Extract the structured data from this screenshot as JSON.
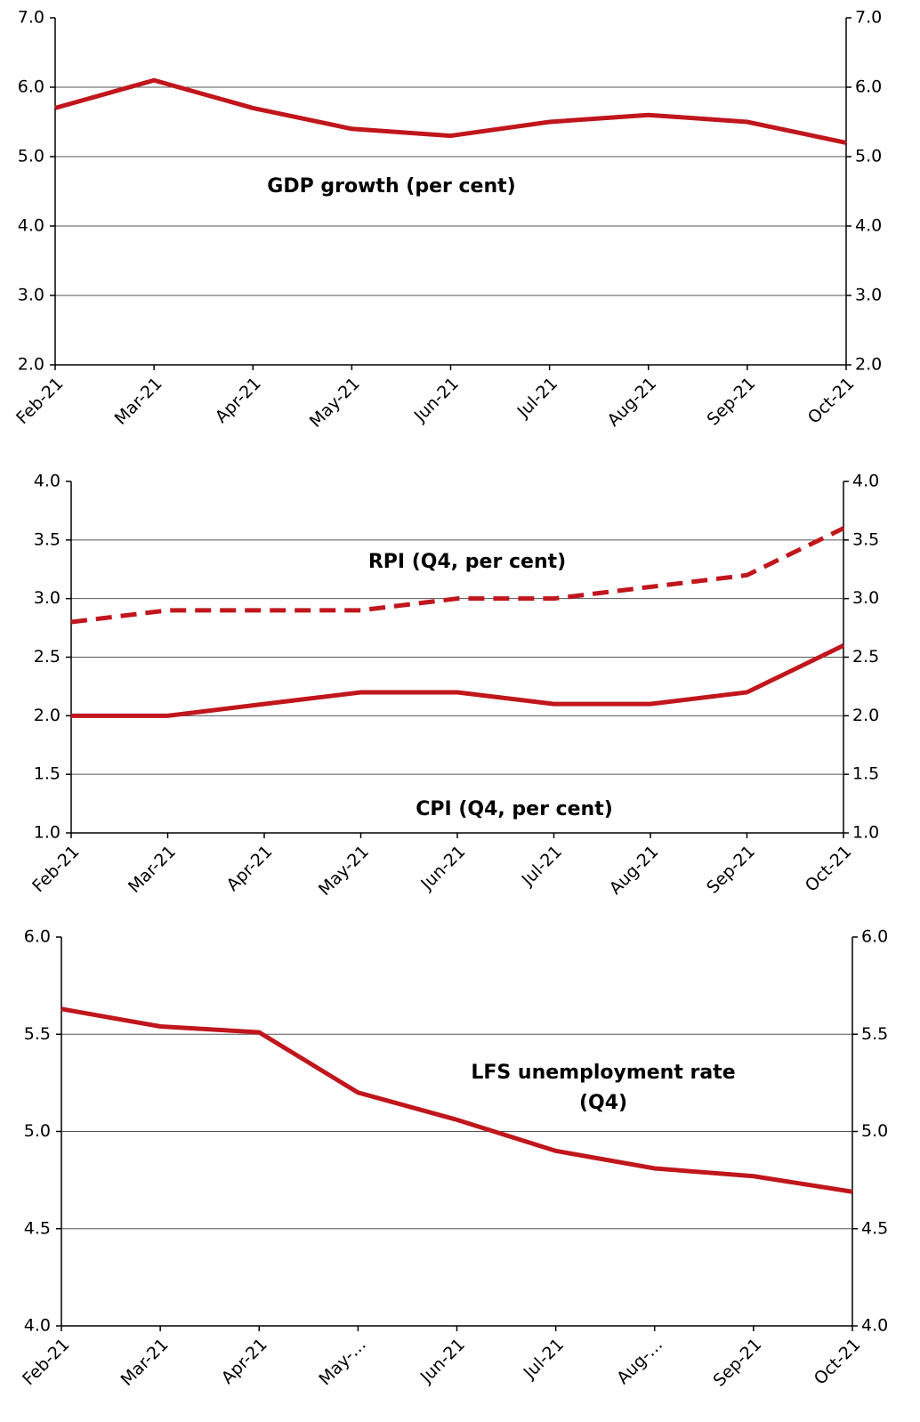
{
  "chart_data": [
    {
      "type": "line",
      "categories": [
        "Feb-21",
        "Mar-21",
        "Apr-21",
        "May-21",
        "Jun-21",
        "Jul-21",
        "Aug-21",
        "Sep-21",
        "Oct-21"
      ],
      "series": [
        {
          "name": "GDP growth (per cent)",
          "color": "#c0161c",
          "line_style": "solid",
          "values": [
            5.7,
            6.1,
            5.7,
            5.4,
            5.3,
            5.5,
            5.6,
            5.5,
            5.2
          ]
        }
      ],
      "ylim": [
        2,
        7
      ],
      "yticks": [
        {
          "value": 2,
          "label": "2.0"
        },
        {
          "value": 3,
          "label": "3.0"
        },
        {
          "value": 4,
          "label": "4.0"
        },
        {
          "value": 5,
          "label": "5.0"
        },
        {
          "value": 6,
          "label": "6.0"
        },
        {
          "value": 7,
          "label": "7.0"
        }
      ],
      "grid": true
    },
    {
      "type": "line",
      "categories": [
        "Feb-21",
        "Mar-21",
        "Apr-21",
        "May-21",
        "Jun-21",
        "Jul-21",
        "Aug-21",
        "Sep-21",
        "Oct-21"
      ],
      "series": [
        {
          "name": "RPI (Q4, per cent)",
          "color": "#c0161c",
          "line_style": "dashed",
          "values": [
            2.8,
            2.9,
            2.9,
            2.9,
            3.0,
            3.0,
            3.1,
            3.2,
            3.6
          ]
        },
        {
          "name": "CPI (Q4, per cent)",
          "color": "#c0161c",
          "line_style": "solid",
          "values": [
            2.0,
            2.0,
            2.1,
            2.2,
            2.2,
            2.1,
            2.1,
            2.2,
            2.6
          ]
        }
      ],
      "ylim": [
        1,
        4
      ],
      "yticks": [
        {
          "value": 1,
          "label": "1.0"
        },
        1.5,
        {
          "value": 2,
          "label": "2.0"
        },
        2.5,
        {
          "value": 3,
          "label": "3.0"
        },
        3.5,
        {
          "value": 4,
          "label": "4.0"
        }
      ],
      "grid": true
    },
    {
      "type": "line",
      "categories": [
        "Feb-21",
        "Mar-21",
        "Apr-21",
        "May-…",
        "Jun-21",
        "Jul-21",
        "Aug-…",
        "Sep-21",
        "Oct-21"
      ],
      "series": [
        {
          "name": "LFS unemployment rate (Q4)",
          "color": "#c0161c",
          "line_style": "solid",
          "values": [
            5.63,
            5.54,
            5.51,
            5.2,
            5.06,
            4.9,
            4.81,
            4.77,
            4.69
          ]
        }
      ],
      "annotation": [
        "LFS unemployment rate",
        "(Q4)"
      ],
      "ylim": [
        4,
        6
      ],
      "yticks": [
        {
          "value": 4,
          "label": "4.0"
        },
        4.5,
        {
          "value": 5,
          "label": "5.0"
        },
        5.5,
        {
          "value": 6,
          "label": "6.0"
        }
      ],
      "grid": true
    }
  ]
}
